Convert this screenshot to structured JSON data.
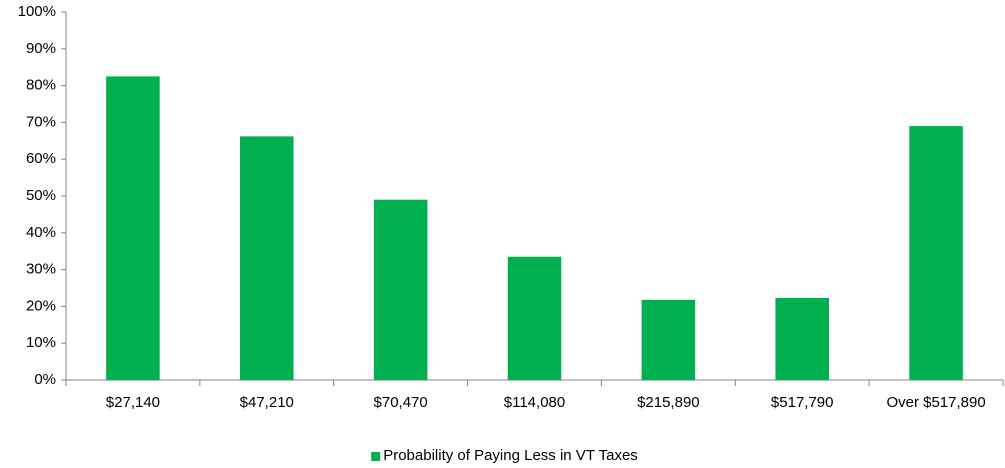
{
  "chart_data": {
    "type": "bar",
    "categories": [
      "$27,140",
      "$47,210",
      "$70,470",
      "$114,080",
      "$215,890",
      "$517,790",
      "Over $517,890"
    ],
    "series": [
      {
        "name": "Probability of Paying Less in VT Taxes",
        "color": "#00b050",
        "values": [
          82.5,
          66.2,
          49,
          33.5,
          21.8,
          22.3,
          69
        ]
      }
    ],
    "ylim": [
      0,
      100
    ],
    "yticks": [
      {
        "value": 0,
        "label": "0%"
      },
      {
        "value": 10,
        "label": "10%"
      },
      {
        "value": 20,
        "label": "20%"
      },
      {
        "value": 30,
        "label": "30%"
      },
      {
        "value": 40,
        "label": "40%"
      },
      {
        "value": 50,
        "label": "50%"
      },
      {
        "value": 60,
        "label": "60%"
      },
      {
        "value": 70,
        "label": "70%"
      },
      {
        "value": 80,
        "label": "80%"
      },
      {
        "value": 90,
        "label": "90%"
      },
      {
        "value": 100,
        "label": "100%"
      }
    ],
    "grid": false,
    "legend": "bottom"
  }
}
